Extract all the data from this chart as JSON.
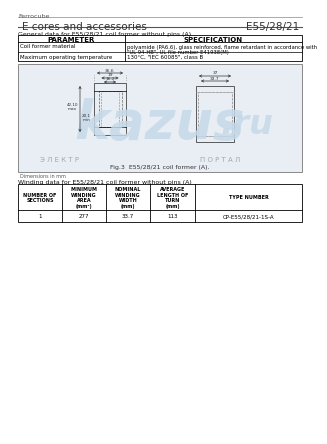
{
  "title_small": "Ferrocube",
  "title_main": "E cores and accessories",
  "title_right": "E55/28/21",
  "section1_title": "General data for E55/28/21 coil former without pins (A)",
  "table1_col_split": 0.38,
  "table1_headers": [
    "PARAMETER",
    "SPECIFICATION"
  ],
  "table1_rows": [
    [
      "Coil former material",
      "polyamide (PA6.6), glass reinforced, flame retardant in accordance with\n\"UL 94-HB\", UL file number E41938(M)"
    ],
    [
      "Maximum operating temperature",
      "130°C, \"IEC 60085\", class B"
    ]
  ],
  "fig_caption": "Fig.3  E55/28/21 coil former (A).",
  "dim_note": "Dimensions in mm",
  "section2_title": "Winding data for E55/28/21 coil former without pins (A)",
  "table2_headers": [
    "NUMBER OF\nSECTIONS",
    "MINIMUM\nWINDING\nAREA\n(mm²)",
    "NOMINAL\nWINDING\nWIDTH\n(mm)",
    "AVERAGE\nLENGTH OF\nTURN\n(mm)",
    "TYPE NUMBER"
  ],
  "table2_rows": [
    [
      "1",
      "277",
      "33.7",
      "113",
      "CP-E55/28/21-1S-A"
    ]
  ],
  "bg_color": "#ffffff",
  "text_color": "#000000",
  "fig_bg": "#e8eef4",
  "fig_border": "#999999",
  "kazus_color": "#b8cfe0",
  "watermark_text": "КАЗУС",
  "watermark_sub": "Э Л Е К Т Р",
  "watermark_sub2": "П О Р Т А Л"
}
